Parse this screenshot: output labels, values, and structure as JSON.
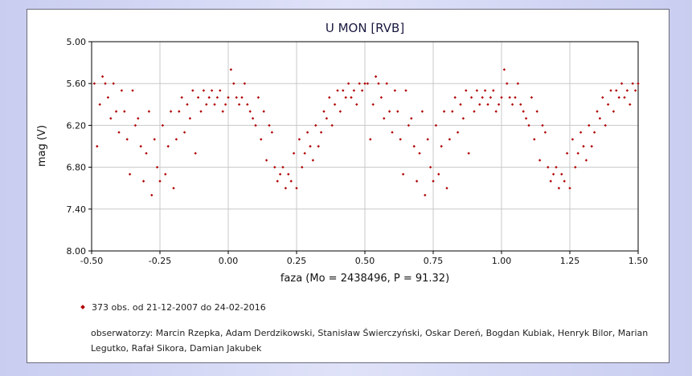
{
  "chart_data": {
    "type": "scatter",
    "title": "U MON [RVB]",
    "xlabel": "faza (Mo = 2438496, P = 91.32)",
    "ylabel": "mag (V)",
    "xlim": [
      -0.5,
      1.5
    ],
    "ylim": [
      5.0,
      8.0
    ],
    "y_inverted": true,
    "grid": true,
    "x_ticks": [
      "-0.50",
      "-0.25",
      "0.00",
      "0.25",
      "0.50",
      "0.75",
      "1.00",
      "1.25",
      "1.50"
    ],
    "y_ticks": [
      "5.00",
      "5.60",
      "6.20",
      "6.80",
      "7.40",
      "8.00"
    ],
    "series": [
      {
        "name": "373 obs. od 21-12-2007 do 24-02-2016",
        "color": "#b00000",
        "points": [
          [
            -0.49,
            5.6
          ],
          [
            -0.48,
            6.5
          ],
          [
            -0.47,
            5.9
          ],
          [
            -0.46,
            5.5
          ],
          [
            -0.45,
            5.6
          ],
          [
            -0.44,
            5.8
          ],
          [
            -0.43,
            6.1
          ],
          [
            -0.42,
            5.6
          ],
          [
            -0.41,
            6.0
          ],
          [
            -0.4,
            6.3
          ],
          [
            -0.39,
            5.7
          ],
          [
            -0.38,
            6.0
          ],
          [
            -0.37,
            6.4
          ],
          [
            -0.36,
            6.9
          ],
          [
            -0.35,
            5.7
          ],
          [
            -0.34,
            6.2
          ],
          [
            -0.33,
            6.1
          ],
          [
            -0.32,
            6.5
          ],
          [
            -0.31,
            7.0
          ],
          [
            -0.3,
            6.6
          ],
          [
            -0.29,
            6.0
          ],
          [
            -0.28,
            7.2
          ],
          [
            -0.27,
            6.4
          ],
          [
            -0.26,
            6.8
          ],
          [
            -0.25,
            7.0
          ],
          [
            -0.24,
            6.2
          ],
          [
            -0.23,
            6.9
          ],
          [
            -0.22,
            6.5
          ],
          [
            -0.21,
            6.0
          ],
          [
            -0.2,
            7.1
          ],
          [
            -0.19,
            6.4
          ],
          [
            -0.18,
            6.0
          ],
          [
            -0.17,
            5.8
          ],
          [
            -0.16,
            6.3
          ],
          [
            -0.15,
            5.9
          ],
          [
            -0.14,
            6.1
          ],
          [
            -0.13,
            5.7
          ],
          [
            -0.12,
            6.6
          ],
          [
            -0.11,
            5.8
          ],
          [
            -0.1,
            6.0
          ],
          [
            -0.09,
            5.7
          ],
          [
            -0.08,
            5.9
          ],
          [
            -0.07,
            5.8
          ],
          [
            -0.06,
            5.7
          ],
          [
            -0.05,
            5.9
          ],
          [
            -0.04,
            5.8
          ],
          [
            -0.03,
            5.7
          ],
          [
            -0.02,
            6.0
          ],
          [
            -0.01,
            5.9
          ],
          [
            0.0,
            5.8
          ],
          [
            0.01,
            5.4
          ],
          [
            0.02,
            5.6
          ],
          [
            0.03,
            5.8
          ],
          [
            0.04,
            5.9
          ],
          [
            0.05,
            5.8
          ],
          [
            0.06,
            5.6
          ],
          [
            0.07,
            5.9
          ],
          [
            0.08,
            6.0
          ],
          [
            0.09,
            6.1
          ],
          [
            0.1,
            6.2
          ],
          [
            0.11,
            5.8
          ],
          [
            0.12,
            6.4
          ],
          [
            0.13,
            6.0
          ],
          [
            0.14,
            6.7
          ],
          [
            0.15,
            6.2
          ],
          [
            0.16,
            6.3
          ],
          [
            0.17,
            6.8
          ],
          [
            0.18,
            7.0
          ],
          [
            0.19,
            6.9
          ],
          [
            0.2,
            6.8
          ],
          [
            0.21,
            7.1
          ],
          [
            0.22,
            6.9
          ],
          [
            0.23,
            7.0
          ],
          [
            0.24,
            6.6
          ],
          [
            0.25,
            7.1
          ],
          [
            0.26,
            6.4
          ],
          [
            0.27,
            6.8
          ],
          [
            0.28,
            6.6
          ],
          [
            0.29,
            6.3
          ],
          [
            0.3,
            6.5
          ],
          [
            0.31,
            6.7
          ],
          [
            0.32,
            6.2
          ],
          [
            0.33,
            6.5
          ],
          [
            0.34,
            6.3
          ],
          [
            0.35,
            6.0
          ],
          [
            0.36,
            6.1
          ],
          [
            0.37,
            5.8
          ],
          [
            0.38,
            6.2
          ],
          [
            0.39,
            5.9
          ],
          [
            0.4,
            5.7
          ],
          [
            0.41,
            6.0
          ],
          [
            0.42,
            5.7
          ],
          [
            0.43,
            5.8
          ],
          [
            0.44,
            5.6
          ],
          [
            0.45,
            5.8
          ],
          [
            0.46,
            5.7
          ],
          [
            0.47,
            5.9
          ],
          [
            0.48,
            5.6
          ],
          [
            0.49,
            5.7
          ],
          [
            0.5,
            5.6
          ],
          [
            0.51,
            5.6
          ],
          [
            0.52,
            6.4
          ],
          [
            0.53,
            5.9
          ],
          [
            0.54,
            5.5
          ],
          [
            0.55,
            5.6
          ],
          [
            0.56,
            5.8
          ],
          [
            0.57,
            6.1
          ],
          [
            0.58,
            5.6
          ],
          [
            0.59,
            6.0
          ],
          [
            0.6,
            6.3
          ],
          [
            0.61,
            5.7
          ],
          [
            0.62,
            6.0
          ],
          [
            0.63,
            6.4
          ],
          [
            0.64,
            6.9
          ],
          [
            0.65,
            5.7
          ],
          [
            0.66,
            6.2
          ],
          [
            0.67,
            6.1
          ],
          [
            0.68,
            6.5
          ],
          [
            0.69,
            7.0
          ],
          [
            0.7,
            6.6
          ],
          [
            0.71,
            6.0
          ],
          [
            0.72,
            7.2
          ],
          [
            0.73,
            6.4
          ],
          [
            0.74,
            6.8
          ],
          [
            0.75,
            7.0
          ],
          [
            0.76,
            6.2
          ],
          [
            0.77,
            6.9
          ],
          [
            0.78,
            6.5
          ],
          [
            0.79,
            6.0
          ],
          [
            0.8,
            7.1
          ],
          [
            0.81,
            6.4
          ],
          [
            0.82,
            6.0
          ],
          [
            0.83,
            5.8
          ],
          [
            0.84,
            6.3
          ],
          [
            0.85,
            5.9
          ],
          [
            0.86,
            6.1
          ],
          [
            0.87,
            5.7
          ],
          [
            0.88,
            6.6
          ],
          [
            0.89,
            5.8
          ],
          [
            0.9,
            6.0
          ],
          [
            0.91,
            5.7
          ],
          [
            0.92,
            5.9
          ],
          [
            0.93,
            5.8
          ],
          [
            0.94,
            5.7
          ],
          [
            0.95,
            5.9
          ],
          [
            0.96,
            5.8
          ],
          [
            0.97,
            5.7
          ],
          [
            0.98,
            6.0
          ],
          [
            0.99,
            5.9
          ],
          [
            1.0,
            5.8
          ],
          [
            1.01,
            5.4
          ],
          [
            1.02,
            5.6
          ],
          [
            1.03,
            5.8
          ],
          [
            1.04,
            5.9
          ],
          [
            1.05,
            5.8
          ],
          [
            1.06,
            5.6
          ],
          [
            1.07,
            5.9
          ],
          [
            1.08,
            6.0
          ],
          [
            1.09,
            6.1
          ],
          [
            1.1,
            6.2
          ],
          [
            1.11,
            5.8
          ],
          [
            1.12,
            6.4
          ],
          [
            1.13,
            6.0
          ],
          [
            1.14,
            6.7
          ],
          [
            1.15,
            6.2
          ],
          [
            1.16,
            6.3
          ],
          [
            1.17,
            6.8
          ],
          [
            1.18,
            7.0
          ],
          [
            1.19,
            6.9
          ],
          [
            1.2,
            6.8
          ],
          [
            1.21,
            7.1
          ],
          [
            1.22,
            6.9
          ],
          [
            1.23,
            7.0
          ],
          [
            1.24,
            6.6
          ],
          [
            1.25,
            7.1
          ],
          [
            1.26,
            6.4
          ],
          [
            1.27,
            6.8
          ],
          [
            1.28,
            6.6
          ],
          [
            1.29,
            6.3
          ],
          [
            1.3,
            6.5
          ],
          [
            1.31,
            6.7
          ],
          [
            1.32,
            6.2
          ],
          [
            1.33,
            6.5
          ],
          [
            1.34,
            6.3
          ],
          [
            1.35,
            6.0
          ],
          [
            1.36,
            6.1
          ],
          [
            1.37,
            5.8
          ],
          [
            1.38,
            6.2
          ],
          [
            1.39,
            5.9
          ],
          [
            1.4,
            5.7
          ],
          [
            1.41,
            6.0
          ],
          [
            1.42,
            5.7
          ],
          [
            1.43,
            5.8
          ],
          [
            1.44,
            5.6
          ],
          [
            1.45,
            5.8
          ],
          [
            1.46,
            5.7
          ],
          [
            1.47,
            5.9
          ],
          [
            1.48,
            5.6
          ],
          [
            1.49,
            5.7
          ],
          [
            1.5,
            5.6
          ]
        ]
      }
    ]
  },
  "legend": {
    "entry": "373 obs. od 21-12-2007 do 24-02-2016",
    "observers": "obserwatorzy: Marcin Rzepka, Adam Derdzikowski, Stanisław Świerczyński, Oskar Dereń, Bogdan Kubiak, Henryk Bilor, Marian Legutko, Rafał Sikora, Damian Jakubek"
  },
  "colors": {
    "point": "#b00000",
    "grid": "#c8c8c8",
    "axis": "#000000",
    "title": "#1a1a40"
  }
}
